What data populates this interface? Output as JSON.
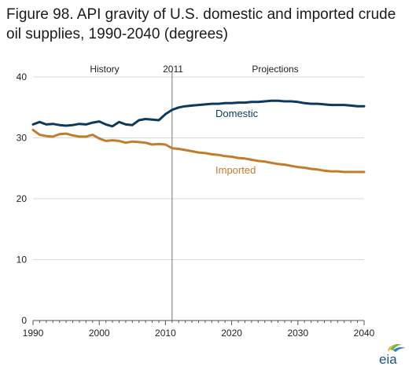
{
  "title": "Figure 98. API gravity of U.S. domestic and imported crude oil supplies, 1990-2040 (degrees)",
  "logo_text": "eia",
  "colors": {
    "domestic": "#0d3a5c",
    "imported": "#c27c2c",
    "axis": "#555555",
    "grid": "#d9d9d9"
  },
  "chart_data": {
    "type": "line",
    "title": "Figure 98. API gravity of U.S. domestic and imported crude oil supplies, 1990-2040 (degrees)",
    "xlabel": "",
    "ylabel": "",
    "xlim": [
      1990,
      2040
    ],
    "ylim": [
      0,
      40
    ],
    "x_ticks": [
      1990,
      2000,
      2010,
      2020,
      2030,
      2040
    ],
    "y_ticks": [
      0,
      10,
      20,
      30,
      40
    ],
    "grid": "horizontal",
    "divider_year": 2011,
    "annotations": {
      "history": "History",
      "divider": "2011",
      "projections": "Projections"
    },
    "x": [
      1990,
      1991,
      1992,
      1993,
      1994,
      1995,
      1996,
      1997,
      1998,
      1999,
      2000,
      2001,
      2002,
      2003,
      2004,
      2005,
      2006,
      2007,
      2008,
      2009,
      2010,
      2011,
      2012,
      2013,
      2014,
      2015,
      2016,
      2017,
      2018,
      2019,
      2020,
      2021,
      2022,
      2023,
      2024,
      2025,
      2026,
      2027,
      2028,
      2029,
      2030,
      2031,
      2032,
      2033,
      2034,
      2035,
      2036,
      2037,
      2038,
      2039,
      2040
    ],
    "series": [
      {
        "name": "Domestic",
        "values": [
          32.2,
          32.6,
          32.2,
          32.3,
          32.1,
          32.0,
          32.1,
          32.3,
          32.2,
          32.5,
          32.7,
          32.2,
          31.9,
          32.6,
          32.2,
          32.1,
          32.9,
          33.1,
          33.0,
          32.9,
          33.9,
          34.6,
          35.0,
          35.2,
          35.3,
          35.4,
          35.5,
          35.6,
          35.6,
          35.7,
          35.7,
          35.8,
          35.8,
          35.9,
          35.9,
          36.0,
          36.1,
          36.1,
          36.0,
          36.0,
          35.9,
          35.7,
          35.6,
          35.6,
          35.5,
          35.4,
          35.4,
          35.4,
          35.3,
          35.2,
          35.2
        ]
      },
      {
        "name": "Imported",
        "values": [
          31.3,
          30.5,
          30.3,
          30.2,
          30.6,
          30.7,
          30.4,
          30.2,
          30.2,
          30.5,
          29.9,
          29.5,
          29.6,
          29.5,
          29.2,
          29.4,
          29.3,
          29.2,
          28.9,
          29.0,
          28.9,
          28.3,
          28.2,
          28.0,
          27.8,
          27.6,
          27.5,
          27.3,
          27.2,
          27.0,
          26.9,
          26.7,
          26.6,
          26.4,
          26.2,
          26.1,
          25.9,
          25.7,
          25.6,
          25.4,
          25.2,
          25.1,
          24.9,
          24.8,
          24.6,
          24.5,
          24.5,
          24.4,
          24.4,
          24.4,
          24.4
        ]
      }
    ]
  }
}
